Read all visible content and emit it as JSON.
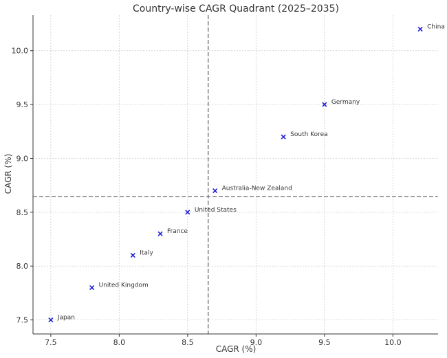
{
  "chart_data": {
    "type": "scatter",
    "title": "Country-wise CAGR Quadrant (2025–2035)",
    "xlabel": "CAGR (%)",
    "ylabel": "CAGR (%)",
    "xlim": [
      7.37,
      10.33
    ],
    "ylim": [
      7.37,
      10.33
    ],
    "xticks": [
      "7.5",
      "8.0",
      "8.5",
      "9.0",
      "9.5",
      "10.0"
    ],
    "yticks": [
      "7.5",
      "8.0",
      "8.5",
      "9.0",
      "9.5",
      "10.0"
    ],
    "grid": true,
    "marker": "x",
    "marker_color": "#1f1fd6",
    "reference_lines": {
      "x": 8.65,
      "y": 8.645
    },
    "points": [
      {
        "label": "China",
        "x": 10.2,
        "y": 10.2
      },
      {
        "label": "Germany",
        "x": 9.5,
        "y": 9.5
      },
      {
        "label": "South Korea",
        "x": 9.2,
        "y": 9.2
      },
      {
        "label": "Australia-New Zealand",
        "x": 8.7,
        "y": 8.7
      },
      {
        "label": "United States",
        "x": 8.5,
        "y": 8.5
      },
      {
        "label": "France",
        "x": 8.3,
        "y": 8.3
      },
      {
        "label": "Italy",
        "x": 8.1,
        "y": 8.1
      },
      {
        "label": "United Kingdom",
        "x": 7.8,
        "y": 7.8
      },
      {
        "label": "Japan",
        "x": 7.5,
        "y": 7.5
      }
    ]
  }
}
